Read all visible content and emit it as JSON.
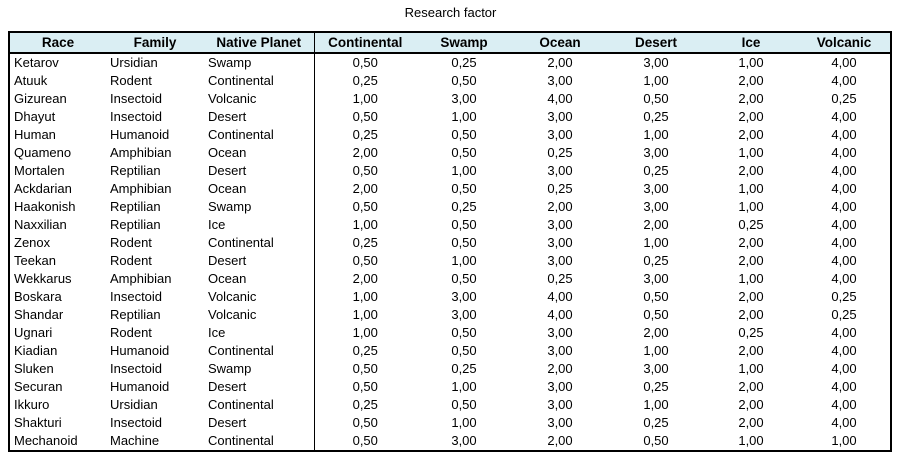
{
  "title": "Research factor",
  "colors": {
    "header_bg": "#DAEEF3",
    "border": "#000000",
    "text": "#000000"
  },
  "table": {
    "columns": [
      {
        "key": "race",
        "label": "Race"
      },
      {
        "key": "family",
        "label": "Family"
      },
      {
        "key": "native-planet",
        "label": "Native Planet"
      },
      {
        "key": "continental",
        "label": "Continental"
      },
      {
        "key": "swamp",
        "label": "Swamp"
      },
      {
        "key": "ocean",
        "label": "Ocean"
      },
      {
        "key": "desert",
        "label": "Desert"
      },
      {
        "key": "ice",
        "label": "Ice"
      },
      {
        "key": "volcanic",
        "label": "Volcanic"
      }
    ],
    "rows": [
      [
        "Ketarov",
        "Ursidian",
        "Swamp",
        "0,50",
        "0,25",
        "2,00",
        "3,00",
        "1,00",
        "4,00"
      ],
      [
        "Atuuk",
        "Rodent",
        "Continental",
        "0,25",
        "0,50",
        "3,00",
        "1,00",
        "2,00",
        "4,00"
      ],
      [
        "Gizurean",
        "Insectoid",
        "Volcanic",
        "1,00",
        "3,00",
        "4,00",
        "0,50",
        "2,00",
        "0,25"
      ],
      [
        "Dhayut",
        "Insectoid",
        "Desert",
        "0,50",
        "1,00",
        "3,00",
        "0,25",
        "2,00",
        "4,00"
      ],
      [
        "Human",
        "Humanoid",
        "Continental",
        "0,25",
        "0,50",
        "3,00",
        "1,00",
        "2,00",
        "4,00"
      ],
      [
        "Quameno",
        "Amphibian",
        "Ocean",
        "2,00",
        "0,50",
        "0,25",
        "3,00",
        "1,00",
        "4,00"
      ],
      [
        "Mortalen",
        "Reptilian",
        "Desert",
        "0,50",
        "1,00",
        "3,00",
        "0,25",
        "2,00",
        "4,00"
      ],
      [
        "Ackdarian",
        "Amphibian",
        "Ocean",
        "2,00",
        "0,50",
        "0,25",
        "3,00",
        "1,00",
        "4,00"
      ],
      [
        "Haakonish",
        "Reptilian",
        "Swamp",
        "0,50",
        "0,25",
        "2,00",
        "3,00",
        "1,00",
        "4,00"
      ],
      [
        "Naxxilian",
        "Reptilian",
        "Ice",
        "1,00",
        "0,50",
        "3,00",
        "2,00",
        "0,25",
        "4,00"
      ],
      [
        "Zenox",
        "Rodent",
        "Continental",
        "0,25",
        "0,50",
        "3,00",
        "1,00",
        "2,00",
        "4,00"
      ],
      [
        "Teekan",
        "Rodent",
        "Desert",
        "0,50",
        "1,00",
        "3,00",
        "0,25",
        "2,00",
        "4,00"
      ],
      [
        "Wekkarus",
        "Amphibian",
        "Ocean",
        "2,00",
        "0,50",
        "0,25",
        "3,00",
        "1,00",
        "4,00"
      ],
      [
        "Boskara",
        "Insectoid",
        "Volcanic",
        "1,00",
        "3,00",
        "4,00",
        "0,50",
        "2,00",
        "0,25"
      ],
      [
        "Shandar",
        "Reptilian",
        "Volcanic",
        "1,00",
        "3,00",
        "4,00",
        "0,50",
        "2,00",
        "0,25"
      ],
      [
        "Ugnari",
        "Rodent",
        "Ice",
        "1,00",
        "0,50",
        "3,00",
        "2,00",
        "0,25",
        "4,00"
      ],
      [
        "Kiadian",
        "Humanoid",
        "Continental",
        "0,25",
        "0,50",
        "3,00",
        "1,00",
        "2,00",
        "4,00"
      ],
      [
        "Sluken",
        "Insectoid",
        "Swamp",
        "0,50",
        "0,25",
        "2,00",
        "3,00",
        "1,00",
        "4,00"
      ],
      [
        "Securan",
        "Humanoid",
        "Desert",
        "0,50",
        "1,00",
        "3,00",
        "0,25",
        "2,00",
        "4,00"
      ],
      [
        "Ikkuro",
        "Ursidian",
        "Continental",
        "0,25",
        "0,50",
        "3,00",
        "1,00",
        "2,00",
        "4,00"
      ],
      [
        "Shakturi",
        "Insectoid",
        "Desert",
        "0,50",
        "1,00",
        "3,00",
        "0,25",
        "2,00",
        "4,00"
      ],
      [
        "Mechanoid",
        "Machine",
        "Continental",
        "0,50",
        "3,00",
        "2,00",
        "0,50",
        "1,00",
        "1,00"
      ]
    ]
  }
}
